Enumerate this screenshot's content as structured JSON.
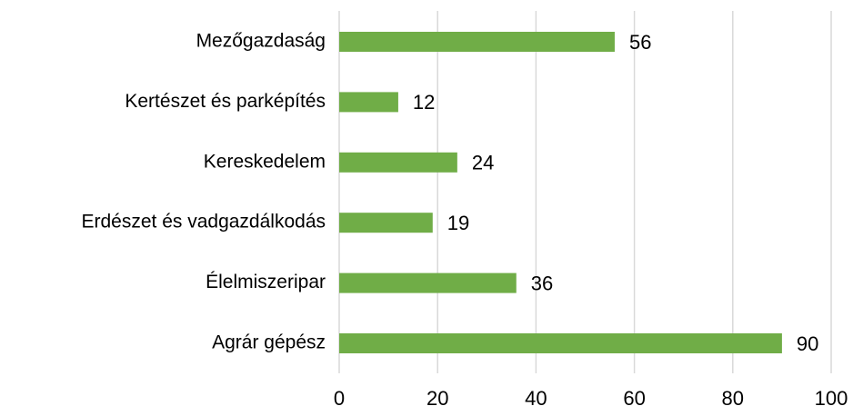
{
  "chart_data": {
    "type": "bar",
    "orientation": "horizontal",
    "categories": [
      "Mezőgazdaság",
      "Kertészet és parképítés",
      "Kereskedelem",
      "Erdészet és vadgazdálkodás",
      "Élelmiszeripar",
      "Agrár gépész"
    ],
    "values": [
      56,
      12,
      24,
      19,
      36,
      90
    ],
    "color": "#70ad47",
    "xlim": [
      0,
      100
    ],
    "xticks": [
      0,
      20,
      40,
      60,
      80,
      100
    ],
    "grid": true
  }
}
